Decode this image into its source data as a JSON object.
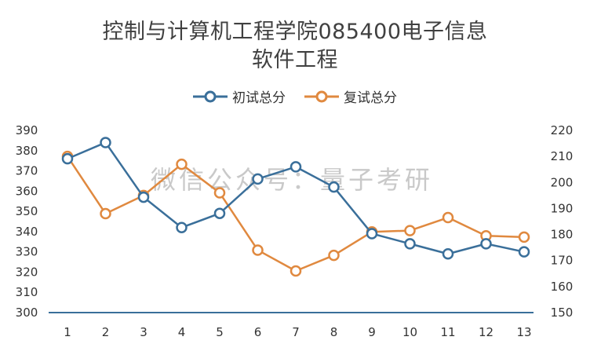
{
  "chart_data": {
    "type": "line",
    "title": "控制与计算机工程学院085400电子信息",
    "subtitle": "软件工程",
    "categories": [
      "1",
      "2",
      "3",
      "4",
      "5",
      "6",
      "7",
      "8",
      "9",
      "10",
      "11",
      "12",
      "13"
    ],
    "series": [
      {
        "name": "初试总分",
        "axis": "left",
        "color": "#3a6f9a",
        "values": [
          376,
          384,
          357,
          342,
          349,
          366,
          372,
          362,
          339,
          334,
          329,
          334,
          330
        ]
      },
      {
        "name": "复试总分",
        "axis": "right",
        "color": "#e0893f",
        "values": [
          210,
          188,
          195,
          207,
          196,
          174,
          166,
          172,
          181,
          181.5,
          186.5,
          179.5,
          179
        ]
      }
    ],
    "y_left": {
      "min": 300,
      "max": 390,
      "step": 10,
      "ticks": [
        "300",
        "310",
        "320",
        "330",
        "340",
        "350",
        "360",
        "370",
        "380",
        "390"
      ]
    },
    "y_right": {
      "min": 150,
      "max": 220,
      "step": 10,
      "ticks": [
        "150",
        "160",
        "170",
        "180",
        "190",
        "200",
        "210",
        "220"
      ]
    },
    "legend_position": "top-center",
    "grid": false
  },
  "watermark": "微信公众号：量子考研"
}
